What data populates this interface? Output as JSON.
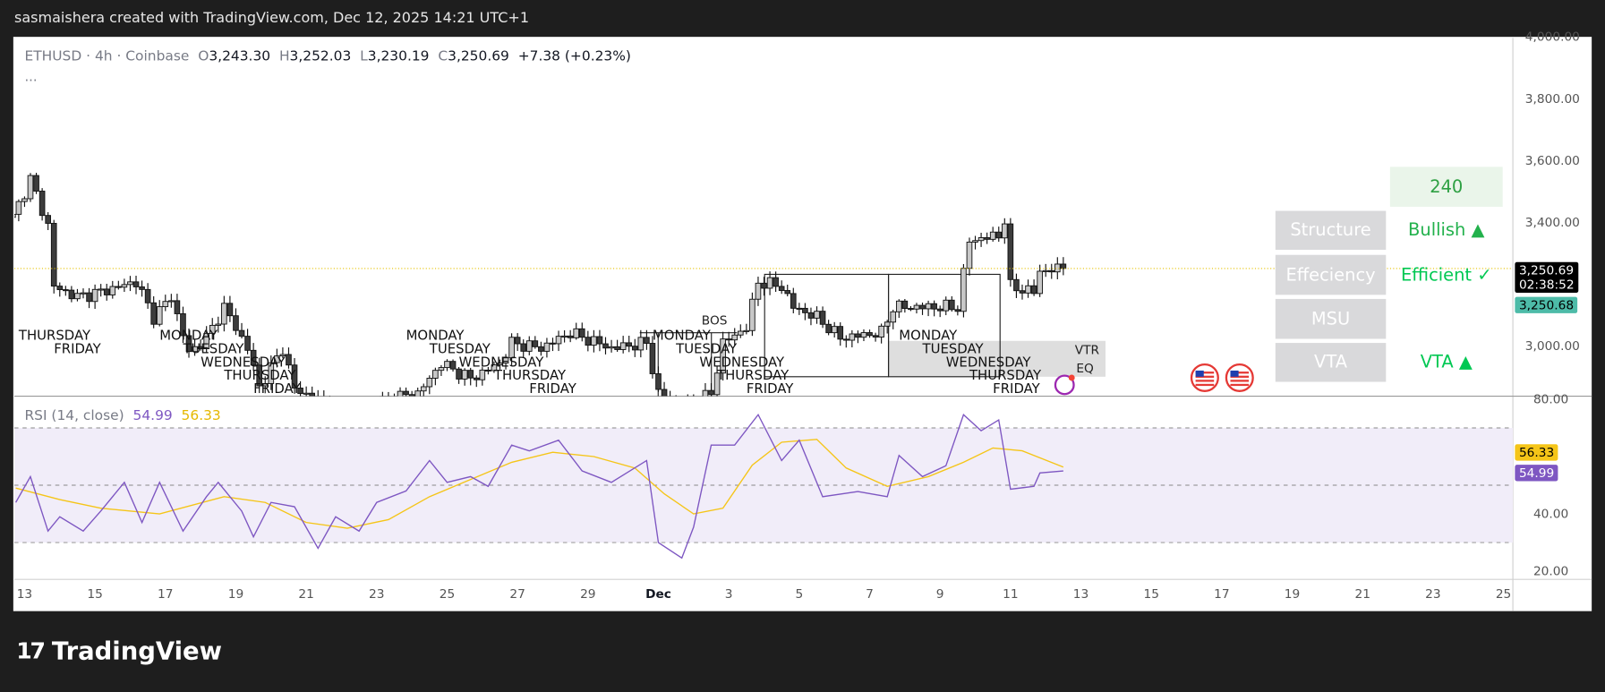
{
  "header": {
    "caption": "sasmaishera created with TradingView.com, Dec 12, 2025 14:21 UTC+1"
  },
  "legend": {
    "symbol": "ETHUSD · 4h · Coinbase",
    "o_label": "O",
    "open": "3,243.30",
    "h_label": "H",
    "high": "3,252.03",
    "l_label": "L",
    "low": "3,230.19",
    "c_label": "C",
    "close": "3,250.69",
    "change": "+7.38 (+0.23%)",
    "more": "..."
  },
  "rsi_legend": {
    "title": "RSI (14, close)",
    "rsi": "54.99",
    "ma": "56.33"
  },
  "colors": {
    "bull": "#c8c8c8",
    "bear": "#3c3c3c",
    "rsi": "#7e57c2",
    "rsi_ma": "#f5c518",
    "band": "#f1edf9",
    "green": "#22b14c",
    "bright_green": "#00e676",
    "last_price_bg": "#000000",
    "prev_price_bg": "#4dbba8"
  },
  "panel": {
    "timeframe": "240",
    "rows": [
      {
        "label": "Structure",
        "value": "Bullish ▲"
      },
      {
        "label": "Effeciency",
        "value": "Efficient ✓"
      },
      {
        "label": "MSU",
        "value": ""
      },
      {
        "label": "VTA",
        "value": "VTA ▲"
      }
    ]
  },
  "price_axis": {
    "ticks": [
      "4,000.00",
      "3,800.00",
      "3,600.00",
      "3,400.00",
      "3,000.00"
    ],
    "tick_values": [
      4000,
      3800,
      3600,
      3400,
      3000
    ],
    "last_price": "3,250.69",
    "countdown": "02:38:52",
    "prev_price": "3,250.68"
  },
  "rsi_axis": {
    "ticks": [
      "80.00",
      "40.00",
      "20.00"
    ],
    "tick_values": [
      80,
      40,
      20
    ],
    "levels": [
      70,
      50,
      30
    ],
    "rsi_label": "54.99",
    "ma_label": "56.33"
  },
  "time_axis": {
    "labels": [
      {
        "t": "2025-11-13",
        "text": "13"
      },
      {
        "t": "2025-11-15",
        "text": "15"
      },
      {
        "t": "2025-11-17",
        "text": "17"
      },
      {
        "t": "2025-11-19",
        "text": "19"
      },
      {
        "t": "2025-11-21",
        "text": "21"
      },
      {
        "t": "2025-11-23",
        "text": "23"
      },
      {
        "t": "2025-11-25",
        "text": "25"
      },
      {
        "t": "2025-11-27",
        "text": "27"
      },
      {
        "t": "2025-11-29",
        "text": "29"
      },
      {
        "t": "2025-12-01",
        "text": "Dec"
      },
      {
        "t": "2025-12-03",
        "text": "3"
      },
      {
        "t": "2025-12-05",
        "text": "5"
      },
      {
        "t": "2025-12-07",
        "text": "7"
      },
      {
        "t": "2025-12-09",
        "text": "9"
      },
      {
        "t": "2025-12-11",
        "text": "11"
      },
      {
        "t": "2025-12-13",
        "text": "13"
      },
      {
        "t": "2025-12-15",
        "text": "15"
      },
      {
        "t": "2025-12-17",
        "text": "17"
      },
      {
        "t": "2025-12-19",
        "text": "19"
      },
      {
        "t": "2025-12-21",
        "text": "21"
      },
      {
        "t": "2025-12-23",
        "text": "23"
      },
      {
        "t": "2025-12-25",
        "text": "25"
      }
    ]
  },
  "day_labels": [
    {
      "t": "2025-11-12T20:00",
      "text": "THURSDAY"
    },
    {
      "t": "2025-11-13T20:00",
      "text": "FRIDAY"
    },
    {
      "t": "2025-11-16T20:00",
      "text": "MONDAY"
    },
    {
      "t": "2025-11-17T12:00",
      "text": "TUESDAY"
    },
    {
      "t": "2025-11-18T00:00",
      "text": "WEDNESDAY"
    },
    {
      "t": "2025-11-18T16:00",
      "text": "THURSDAY"
    },
    {
      "t": "2025-11-19T12:00",
      "text": "FRIDAY"
    },
    {
      "t": "2025-11-23T20:00",
      "text": "MONDAY"
    },
    {
      "t": "2025-11-24T12:00",
      "text": "TUESDAY"
    },
    {
      "t": "2025-11-25T08:00",
      "text": "WEDNESDAY"
    },
    {
      "t": "2025-11-26T08:00",
      "text": "THURSDAY"
    },
    {
      "t": "2025-11-27T08:00",
      "text": "FRIDAY"
    },
    {
      "t": "2025-11-30T20:00",
      "text": "MONDAY"
    },
    {
      "t": "2025-12-01T12:00",
      "text": "TUESDAY"
    },
    {
      "t": "2025-12-02T04:00",
      "text": "WEDNESDAY"
    },
    {
      "t": "2025-12-02T16:00",
      "text": "THURSDAY"
    },
    {
      "t": "2025-12-03T12:00",
      "text": "FRIDAY"
    },
    {
      "t": "2025-12-07T20:00",
      "text": "MONDAY"
    },
    {
      "t": "2025-12-08T12:00",
      "text": "TUESDAY"
    },
    {
      "t": "2025-12-09T04:00",
      "text": "WEDNESDAY"
    },
    {
      "t": "2025-12-09T20:00",
      "text": "THURSDAY"
    },
    {
      "t": "2025-12-10T12:00",
      "text": "FRIDAY"
    }
  ],
  "annotations": {
    "bos": "BOS",
    "vtr": "VTR",
    "eq": "EQ"
  },
  "chart_data": {
    "type": "candlestick",
    "price_close_path": [
      [
        "2025-11-12T16:00",
        3417
      ],
      [
        "2025-11-13T04:00",
        3540
      ],
      [
        "2025-11-13T16:00",
        3390
      ],
      [
        "2025-11-13T20:00",
        3192
      ],
      [
        "2025-11-14T12:00",
        3159
      ],
      [
        "2025-11-15T04:00",
        3175
      ],
      [
        "2025-11-16T04:00",
        3208
      ],
      [
        "2025-11-16T16:00",
        3093
      ],
      [
        "2025-11-17T04:00",
        3159
      ],
      [
        "2025-11-17T16:00",
        2977
      ],
      [
        "2025-11-18T04:00",
        3026
      ],
      [
        "2025-11-18T16:00",
        3126
      ],
      [
        "2025-11-19T08:00",
        2993
      ],
      [
        "2025-11-19T16:00",
        2867
      ],
      [
        "2025-11-20T08:00",
        2993
      ],
      [
        "2025-11-20T16:00",
        2861
      ],
      [
        "2025-11-22T04:00",
        2780
      ],
      [
        "2025-11-23T08:00",
        2830
      ],
      [
        "2025-11-24T04:00",
        2845
      ],
      [
        "2025-11-24T20:00",
        2944
      ],
      [
        "2025-11-25T16:00",
        2894
      ],
      [
        "2025-11-26T12:00",
        2944
      ],
      [
        "2025-11-26T20:00",
        3010
      ],
      [
        "2025-11-27T16:00",
        2993
      ],
      [
        "2025-11-28T12:00",
        3043
      ],
      [
        "2025-11-29T16:00",
        2993
      ],
      [
        "2025-11-30T16:00",
        3010
      ],
      [
        "2025-12-01T00:00",
        2845
      ],
      [
        "2025-12-01T16:00",
        2795
      ],
      [
        "2025-12-02T12:00",
        2845
      ],
      [
        "2025-12-02T20:00",
        3010
      ],
      [
        "2025-12-03T12:00",
        3060
      ],
      [
        "2025-12-03T20:00",
        3208
      ],
      [
        "2025-12-04T12:00",
        3192
      ],
      [
        "2025-12-04T20:00",
        3126
      ],
      [
        "2025-12-05T12:00",
        3093
      ],
      [
        "2025-12-06T04:00",
        3026
      ],
      [
        "2025-12-07T08:00",
        3043
      ],
      [
        "2025-12-07T16:00",
        3126
      ],
      [
        "2025-12-08T12:00",
        3126
      ],
      [
        "2025-12-09T12:00",
        3126
      ],
      [
        "2025-12-09T20:00",
        3341
      ],
      [
        "2025-12-10T16:00",
        3358
      ],
      [
        "2025-12-10T20:00",
        3407
      ],
      [
        "2025-12-11T00:00",
        3192
      ],
      [
        "2025-12-11T16:00",
        3175
      ],
      [
        "2025-12-11T20:00",
        3242
      ],
      [
        "2025-12-12T12:00",
        3250.69
      ]
    ],
    "price_range": [
      2780,
      4000
    ],
    "rsi": [
      [
        "2025-11-12T18:00",
        44
      ],
      [
        "2025-11-13T04:00",
        53
      ],
      [
        "2025-11-13T16:00",
        34
      ],
      [
        "2025-11-14T00:00",
        39
      ],
      [
        "2025-11-14T16:00",
        34
      ],
      [
        "2025-11-15T04:00",
        41
      ],
      [
        "2025-11-15T20:00",
        51
      ],
      [
        "2025-11-16T08:00",
        37
      ],
      [
        "2025-11-16T20:00",
        51
      ],
      [
        "2025-11-17T12:00",
        34
      ],
      [
        "2025-11-18T04:00",
        46
      ],
      [
        "2025-11-18T12:00",
        51
      ],
      [
        "2025-11-19T04:00",
        41
      ],
      [
        "2025-11-19T12:00",
        32
      ],
      [
        "2025-11-20T00:00",
        44
      ],
      [
        "2025-11-20T16:00",
        42.5
      ],
      [
        "2025-11-21T08:00",
        28
      ],
      [
        "2025-11-21T20:00",
        39
      ],
      [
        "2025-11-22T12:00",
        34
      ],
      [
        "2025-11-23T00:00",
        44
      ],
      [
        "2025-11-23T20:00",
        48
      ],
      [
        "2025-11-24T12:00",
        58.6
      ],
      [
        "2025-11-25T00:00",
        51
      ],
      [
        "2025-11-25T16:00",
        53
      ],
      [
        "2025-11-26T04:00",
        49.6
      ],
      [
        "2025-11-26T20:00",
        64
      ],
      [
        "2025-11-27T08:00",
        62
      ],
      [
        "2025-11-28T04:00",
        65.7
      ],
      [
        "2025-11-28T20:00",
        55
      ],
      [
        "2025-11-29T16:00",
        51
      ],
      [
        "2025-11-30T16:00",
        58.6
      ],
      [
        "2025-12-01T00:00",
        30
      ],
      [
        "2025-12-01T16:00",
        24.6
      ],
      [
        "2025-12-02T00:00",
        35.4
      ],
      [
        "2025-12-02T12:00",
        64
      ],
      [
        "2025-12-03T04:00",
        64
      ],
      [
        "2025-12-03T20:00",
        74.6
      ],
      [
        "2025-12-04T12:00",
        58.6
      ],
      [
        "2025-12-05T00:00",
        65.7
      ],
      [
        "2025-12-05T16:00",
        46
      ],
      [
        "2025-12-06T16:00",
        47.8
      ],
      [
        "2025-12-07T12:00",
        46
      ],
      [
        "2025-12-07T20:00",
        60.4
      ],
      [
        "2025-12-08T12:00",
        53
      ],
      [
        "2025-12-09T04:00",
        56.8
      ],
      [
        "2025-12-09T16:00",
        74.6
      ],
      [
        "2025-12-10T04:00",
        69
      ],
      [
        "2025-12-10T16:00",
        72.8
      ],
      [
        "2025-12-11T00:00",
        48.6
      ],
      [
        "2025-12-11T16:00",
        49.6
      ],
      [
        "2025-12-11T20:00",
        54.3
      ],
      [
        "2025-12-12T12:00",
        54.99
      ]
    ],
    "rsi_ma": [
      [
        "2025-11-12T18:00",
        49
      ],
      [
        "2025-11-14T00:00",
        45
      ],
      [
        "2025-11-15T04:00",
        42
      ],
      [
        "2025-11-16T20:00",
        40
      ],
      [
        "2025-11-18T16:00",
        46
      ],
      [
        "2025-11-19T20:00",
        44
      ],
      [
        "2025-11-21T00:00",
        37
      ],
      [
        "2025-11-22T04:00",
        35
      ],
      [
        "2025-11-23T08:00",
        38
      ],
      [
        "2025-11-24T12:00",
        46
      ],
      [
        "2025-11-25T16:00",
        52
      ],
      [
        "2025-11-26T20:00",
        58
      ],
      [
        "2025-11-28T00:00",
        61.5
      ],
      [
        "2025-11-29T04:00",
        60
      ],
      [
        "2025-11-30T08:00",
        56
      ],
      [
        "2025-12-01T04:00",
        47
      ],
      [
        "2025-12-02T00:00",
        40
      ],
      [
        "2025-12-02T20:00",
        42
      ],
      [
        "2025-12-03T16:00",
        57
      ],
      [
        "2025-12-04T12:00",
        65
      ],
      [
        "2025-12-05T12:00",
        66
      ],
      [
        "2025-12-06T08:00",
        56
      ],
      [
        "2025-12-07T12:00",
        49.6
      ],
      [
        "2025-12-08T16:00",
        53
      ],
      [
        "2025-12-09T16:00",
        58
      ],
      [
        "2025-12-10T12:00",
        63
      ],
      [
        "2025-12-11T08:00",
        62
      ],
      [
        "2025-12-12T12:00",
        56.33
      ]
    ],
    "rsi_range": [
      20,
      80
    ]
  },
  "footer": {
    "brand": "TradingView",
    "logo_mark": "17"
  }
}
